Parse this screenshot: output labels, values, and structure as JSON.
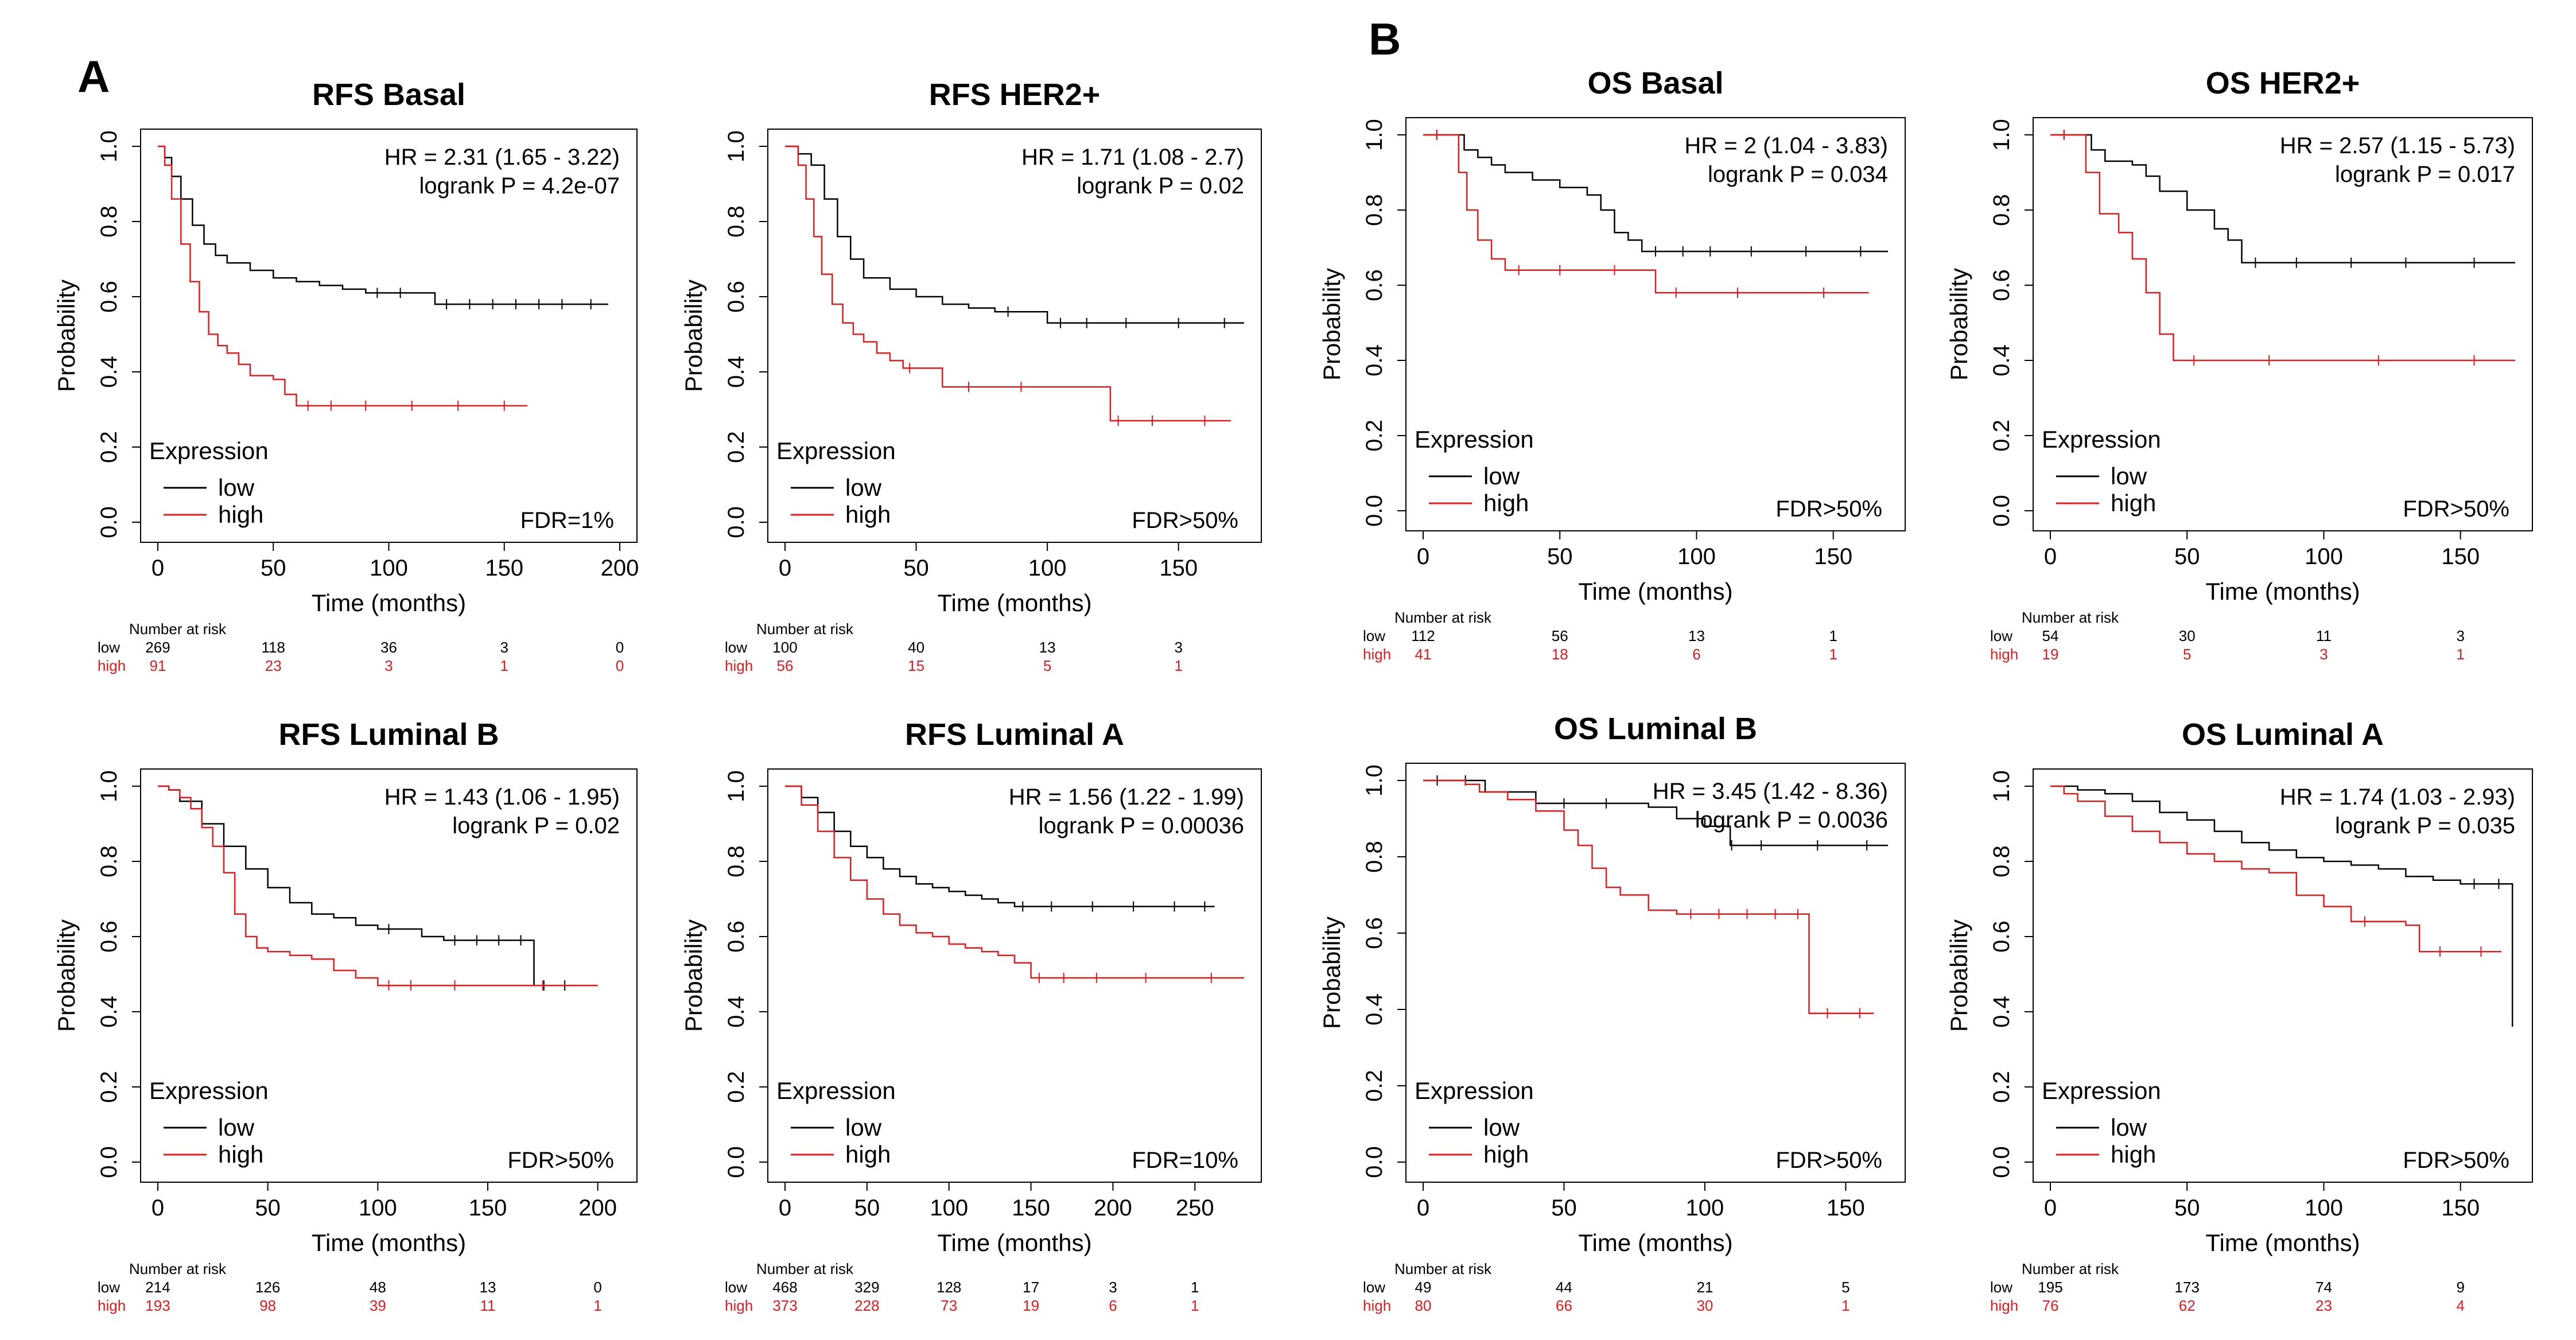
{
  "panels": [
    "A",
    "B"
  ],
  "colors": {
    "low": "#000000",
    "high": "#e41a1c",
    "frame": "#000000",
    "background": "#ffffff"
  },
  "common": {
    "ylabel": "Probability",
    "xlabel": "Time (months)",
    "legend_title": "Expression",
    "legend_low": "low",
    "legend_high": "high",
    "risk_header": "Number at risk",
    "risk_row_low": "low",
    "risk_row_high": "high"
  },
  "chart_data": [
    {
      "type": "line",
      "panel": "A",
      "title": "RFS Basal",
      "hr": "HR = 2.31 (1.65 - 3.22)",
      "logrank": "logrank P = 4.2e-07",
      "fdr": "FDR=1%",
      "xlim": [
        0,
        200
      ],
      "ylim": [
        0,
        1
      ],
      "xticks": [
        0,
        50,
        100,
        150,
        200
      ],
      "yticks": [
        0,
        0.2,
        0.4,
        0.6,
        0.8,
        1.0
      ],
      "ytick_labels": [
        "0.0",
        "0.2",
        "0.4",
        "0.6",
        "0.8",
        "1.0"
      ],
      "risk_times": [
        0,
        50,
        100,
        150,
        200
      ],
      "risk_low": [
        "269",
        "118",
        "36",
        "3",
        "0"
      ],
      "risk_high": [
        "91",
        "23",
        "3",
        "1",
        "0"
      ],
      "series": [
        {
          "name": "low",
          "x": [
            0,
            3,
            6,
            10,
            15,
            20,
            25,
            30,
            40,
            50,
            60,
            70,
            80,
            90,
            100,
            110,
            120,
            130,
            140,
            150,
            160,
            170,
            180,
            195
          ],
          "y": [
            1.0,
            0.97,
            0.92,
            0.86,
            0.79,
            0.74,
            0.71,
            0.69,
            0.67,
            0.65,
            0.64,
            0.63,
            0.62,
            0.61,
            0.61,
            0.61,
            0.58,
            0.58,
            0.58,
            0.58,
            0.58,
            0.58,
            0.58,
            0.58
          ]
        },
        {
          "name": "high",
          "x": [
            0,
            3,
            6,
            10,
            14,
            18,
            22,
            26,
            30,
            35,
            40,
            50,
            55,
            60,
            70,
            80,
            100,
            120,
            140,
            160
          ],
          "y": [
            1.0,
            0.95,
            0.86,
            0.74,
            0.64,
            0.56,
            0.5,
            0.47,
            0.45,
            0.42,
            0.39,
            0.38,
            0.34,
            0.31,
            0.31,
            0.31,
            0.31,
            0.31,
            0.31,
            0.31
          ]
        }
      ]
    },
    {
      "type": "line",
      "panel": "A",
      "title": "RFS HER2+",
      "hr": "HR = 1.71 (1.08 - 2.7)",
      "logrank": "logrank P = 0.02",
      "fdr": "FDR>50%",
      "xlim": [
        0,
        175
      ],
      "ylim": [
        0,
        1
      ],
      "xticks": [
        0,
        50,
        100,
        150
      ],
      "yticks": [
        0,
        0.2,
        0.4,
        0.6,
        0.8,
        1.0
      ],
      "ytick_labels": [
        "0.0",
        "0.2",
        "0.4",
        "0.6",
        "0.8",
        "1.0"
      ],
      "risk_times": [
        0,
        50,
        100,
        150
      ],
      "risk_low": [
        "100",
        "40",
        "13",
        "3"
      ],
      "risk_high": [
        "56",
        "15",
        "5",
        "1"
      ],
      "series": [
        {
          "name": "low",
          "x": [
            0,
            5,
            10,
            15,
            20,
            25,
            30,
            40,
            50,
            60,
            70,
            80,
            90,
            100,
            110,
            120,
            140,
            160,
            175
          ],
          "y": [
            1.0,
            0.98,
            0.95,
            0.86,
            0.76,
            0.7,
            0.65,
            0.62,
            0.6,
            0.58,
            0.57,
            0.56,
            0.56,
            0.53,
            0.53,
            0.53,
            0.53,
            0.53,
            0.53
          ]
        },
        {
          "name": "high",
          "x": [
            0,
            5,
            8,
            11,
            14,
            18,
            22,
            26,
            30,
            35,
            40,
            45,
            50,
            60,
            80,
            100,
            124,
            130,
            150,
            170
          ],
          "y": [
            1.0,
            0.95,
            0.86,
            0.76,
            0.66,
            0.58,
            0.53,
            0.5,
            0.48,
            0.45,
            0.43,
            0.41,
            0.41,
            0.36,
            0.36,
            0.36,
            0.27,
            0.27,
            0.27,
            0.27
          ]
        }
      ]
    },
    {
      "type": "line",
      "panel": "A",
      "title": "RFS Luminal B",
      "hr": "HR = 1.43 (1.06 - 1.95)",
      "logrank": "logrank P = 0.02",
      "fdr": "FDR>50%",
      "xlim": [
        0,
        210
      ],
      "ylim": [
        0,
        1
      ],
      "xticks": [
        0,
        50,
        100,
        150,
        200
      ],
      "yticks": [
        0,
        0.2,
        0.4,
        0.6,
        0.8,
        1.0
      ],
      "ytick_labels": [
        "0.0",
        "0.2",
        "0.4",
        "0.6",
        "0.8",
        "1.0"
      ],
      "risk_times": [
        0,
        50,
        100,
        150,
        200
      ],
      "risk_low": [
        "214",
        "126",
        "48",
        "13",
        "0"
      ],
      "risk_high": [
        "193",
        "98",
        "39",
        "11",
        "1"
      ],
      "series": [
        {
          "name": "low",
          "x": [
            0,
            5,
            10,
            20,
            30,
            40,
            50,
            60,
            70,
            80,
            90,
            100,
            110,
            120,
            130,
            140,
            150,
            160,
            170,
            171,
            180,
            190
          ],
          "y": [
            1.0,
            0.99,
            0.96,
            0.9,
            0.84,
            0.78,
            0.73,
            0.69,
            0.66,
            0.65,
            0.63,
            0.62,
            0.62,
            0.6,
            0.59,
            0.59,
            0.59,
            0.59,
            0.59,
            0.47,
            0.47,
            0.47
          ]
        },
        {
          "name": "high",
          "x": [
            0,
            5,
            10,
            15,
            20,
            25,
            30,
            35,
            40,
            45,
            50,
            60,
            70,
            80,
            90,
            100,
            110,
            120,
            150,
            200
          ],
          "y": [
            1.0,
            0.99,
            0.97,
            0.94,
            0.89,
            0.84,
            0.77,
            0.66,
            0.6,
            0.57,
            0.56,
            0.55,
            0.54,
            0.51,
            0.49,
            0.47,
            0.47,
            0.47,
            0.47,
            0.47
          ]
        }
      ]
    },
    {
      "type": "line",
      "panel": "A",
      "title": "RFS Luminal A",
      "hr": "HR = 1.56 (1.22 - 1.99)",
      "logrank": "logrank P = 0.00036",
      "fdr": "FDR=10%",
      "xlim": [
        0,
        280
      ],
      "ylim": [
        0,
        1
      ],
      "xticks": [
        0,
        50,
        100,
        150,
        200,
        250
      ],
      "yticks": [
        0,
        0.2,
        0.4,
        0.6,
        0.8,
        1.0
      ],
      "ytick_labels": [
        "0.0",
        "0.2",
        "0.4",
        "0.6",
        "0.8",
        "1.0"
      ],
      "risk_times": [
        0,
        50,
        100,
        150,
        200,
        250
      ],
      "risk_low": [
        "468",
        "329",
        "128",
        "17",
        "3",
        "1"
      ],
      "risk_high": [
        "373",
        "228",
        "73",
        "19",
        "6",
        "1"
      ],
      "series": [
        {
          "name": "low",
          "x": [
            0,
            10,
            20,
            30,
            40,
            50,
            60,
            70,
            80,
            90,
            100,
            110,
            120,
            130,
            140,
            150,
            175,
            200,
            225,
            250,
            262
          ],
          "y": [
            1.0,
            0.97,
            0.93,
            0.88,
            0.84,
            0.81,
            0.78,
            0.76,
            0.74,
            0.73,
            0.72,
            0.71,
            0.7,
            0.69,
            0.68,
            0.68,
            0.68,
            0.68,
            0.68,
            0.68,
            0.68
          ]
        },
        {
          "name": "high",
          "x": [
            0,
            10,
            20,
            30,
            40,
            50,
            60,
            70,
            80,
            90,
            100,
            110,
            120,
            130,
            140,
            150,
            160,
            180,
            200,
            240,
            280
          ],
          "y": [
            1.0,
            0.95,
            0.88,
            0.81,
            0.75,
            0.7,
            0.66,
            0.63,
            0.61,
            0.6,
            0.58,
            0.57,
            0.56,
            0.55,
            0.53,
            0.49,
            0.49,
            0.49,
            0.49,
            0.49,
            0.49
          ]
        }
      ]
    },
    {
      "type": "line",
      "panel": "B",
      "title": "OS Basal",
      "hr": "HR = 2 (1.04 - 3.83)",
      "logrank": "logrank P = 0.034",
      "fdr": "FDR>50%",
      "xlim": [
        0,
        170
      ],
      "ylim": [
        0,
        1
      ],
      "xticks": [
        0,
        50,
        100,
        150
      ],
      "yticks": [
        0,
        0.2,
        0.4,
        0.6,
        0.8,
        1.0
      ],
      "ytick_labels": [
        "0.0",
        "0.2",
        "0.4",
        "0.6",
        "0.8",
        "1.0"
      ],
      "risk_times": [
        0,
        50,
        100,
        150
      ],
      "risk_low": [
        "112",
        "56",
        "13",
        "1"
      ],
      "risk_high": [
        "41",
        "18",
        "6",
        "1"
      ],
      "series": [
        {
          "name": "low",
          "x": [
            0,
            10,
            15,
            20,
            25,
            30,
            40,
            50,
            60,
            65,
            70,
            75,
            80,
            90,
            100,
            110,
            130,
            150,
            170
          ],
          "y": [
            1.0,
            1.0,
            0.96,
            0.94,
            0.92,
            0.9,
            0.88,
            0.86,
            0.84,
            0.8,
            0.74,
            0.72,
            0.69,
            0.69,
            0.69,
            0.69,
            0.69,
            0.69,
            0.69
          ]
        },
        {
          "name": "high",
          "x": [
            0,
            10,
            13,
            16,
            20,
            25,
            30,
            40,
            60,
            80,
            85,
            100,
            130,
            163
          ],
          "y": [
            1.0,
            1.0,
            0.9,
            0.8,
            0.72,
            0.67,
            0.64,
            0.64,
            0.64,
            0.64,
            0.58,
            0.58,
            0.58,
            0.58
          ]
        }
      ]
    },
    {
      "type": "line",
      "panel": "B",
      "title": "OS HER2+",
      "hr": "HR = 2.57 (1.15 - 5.73)",
      "logrank": "logrank P = 0.017",
      "fdr": "FDR>50%",
      "xlim": [
        0,
        170
      ],
      "ylim": [
        0,
        1
      ],
      "xticks": [
        0,
        50,
        100,
        150
      ],
      "yticks": [
        0,
        0.2,
        0.4,
        0.6,
        0.8,
        1.0
      ],
      "ytick_labels": [
        "0.0",
        "0.2",
        "0.4",
        "0.6",
        "0.8",
        "1.0"
      ],
      "risk_times": [
        0,
        50,
        100,
        150
      ],
      "risk_low": [
        "54",
        "30",
        "11",
        "3"
      ],
      "risk_high": [
        "19",
        "5",
        "3",
        "1"
      ],
      "series": [
        {
          "name": "low",
          "x": [
            0,
            10,
            15,
            20,
            30,
            35,
            40,
            50,
            60,
            65,
            70,
            80,
            100,
            120,
            140,
            170
          ],
          "y": [
            1.0,
            1.0,
            0.96,
            0.93,
            0.92,
            0.89,
            0.85,
            0.8,
            0.75,
            0.72,
            0.66,
            0.66,
            0.66,
            0.66,
            0.66,
            0.66
          ]
        },
        {
          "name": "high",
          "x": [
            0,
            10,
            13,
            18,
            25,
            30,
            35,
            40,
            45,
            60,
            100,
            140,
            170
          ],
          "y": [
            1.0,
            1.0,
            0.9,
            0.79,
            0.74,
            0.67,
            0.58,
            0.47,
            0.4,
            0.4,
            0.4,
            0.4,
            0.4
          ]
        }
      ]
    },
    {
      "type": "line",
      "panel": "B",
      "title": "OS Luminal B",
      "hr": "HR = 3.45 (1.42 - 8.36)",
      "logrank": "logrank P = 0.0036",
      "fdr": "FDR>50%",
      "xlim": [
        0,
        165
      ],
      "ylim": [
        0,
        1
      ],
      "xticks": [
        0,
        50,
        100,
        150
      ],
      "yticks": [
        0,
        0.2,
        0.4,
        0.6,
        0.8,
        1.0
      ],
      "ytick_labels": [
        "0.0",
        "0.2",
        "0.4",
        "0.6",
        "0.8",
        "1.0"
      ],
      "risk_times": [
        0,
        50,
        100,
        150
      ],
      "risk_low": [
        "49",
        "44",
        "21",
        "5"
      ],
      "risk_high": [
        "80",
        "66",
        "30",
        "1"
      ],
      "series": [
        {
          "name": "low",
          "x": [
            0,
            10,
            20,
            22,
            40,
            60,
            70,
            80,
            90,
            100,
            109,
            110,
            130,
            150,
            165
          ],
          "y": [
            1.0,
            1.0,
            1.0,
            0.97,
            0.94,
            0.94,
            0.94,
            0.93,
            0.9,
            0.88,
            0.83,
            0.83,
            0.83,
            0.83,
            0.83
          ]
        },
        {
          "name": "high",
          "x": [
            0,
            15,
            20,
            30,
            40,
            50,
            55,
            60,
            65,
            70,
            80,
            90,
            100,
            110,
            120,
            130,
            136,
            137,
            150,
            160
          ],
          "y": [
            1.0,
            0.99,
            0.97,
            0.95,
            0.92,
            0.87,
            0.83,
            0.77,
            0.72,
            0.7,
            0.66,
            0.65,
            0.65,
            0.65,
            0.65,
            0.65,
            0.65,
            0.39,
            0.39,
            0.39
          ]
        }
      ]
    },
    {
      "type": "line",
      "panel": "B",
      "title": "OS Luminal A",
      "hr": "HR = 1.74 (1.03 - 2.93)",
      "logrank": "logrank P = 0.035",
      "fdr": "FDR>50%",
      "xlim": [
        0,
        170
      ],
      "ylim": [
        0,
        1
      ],
      "xticks": [
        0,
        50,
        100,
        150
      ],
      "yticks": [
        0,
        0.2,
        0.4,
        0.6,
        0.8,
        1.0
      ],
      "ytick_labels": [
        "0.0",
        "0.2",
        "0.4",
        "0.6",
        "0.8",
        "1.0"
      ],
      "risk_times": [
        0,
        50,
        100,
        150
      ],
      "risk_low": [
        "195",
        "173",
        "74",
        "9"
      ],
      "risk_high": [
        "76",
        "62",
        "23",
        "4"
      ],
      "series": [
        {
          "name": "low",
          "x": [
            0,
            10,
            20,
            30,
            40,
            50,
            60,
            70,
            80,
            90,
            100,
            110,
            120,
            130,
            140,
            150,
            160,
            168,
            169
          ],
          "y": [
            1.0,
            0.99,
            0.98,
            0.96,
            0.93,
            0.91,
            0.88,
            0.85,
            0.83,
            0.81,
            0.8,
            0.79,
            0.78,
            0.76,
            0.75,
            0.74,
            0.74,
            0.74,
            0.36
          ]
        },
        {
          "name": "high",
          "x": [
            0,
            5,
            10,
            20,
            30,
            40,
            50,
            60,
            70,
            80,
            90,
            100,
            110,
            120,
            130,
            135,
            150,
            165
          ],
          "y": [
            1.0,
            0.98,
            0.96,
            0.92,
            0.88,
            0.85,
            0.82,
            0.8,
            0.78,
            0.77,
            0.71,
            0.68,
            0.64,
            0.64,
            0.63,
            0.56,
            0.56,
            0.56
          ]
        }
      ]
    }
  ]
}
